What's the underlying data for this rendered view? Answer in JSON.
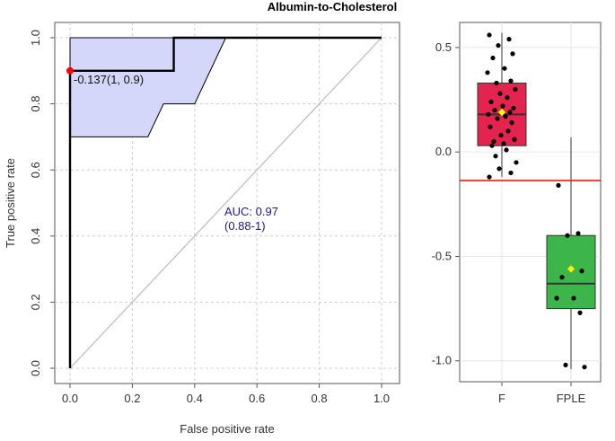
{
  "title": "Albumin-to-Cholesterol",
  "chart_data": [
    {
      "type": "line",
      "subtype": "roc",
      "xlabel": "False positive rate",
      "ylabel": "True positive rate",
      "xlim": [
        0,
        1
      ],
      "ylim": [
        0,
        1
      ],
      "xticks": [
        "0.0",
        "0.2",
        "0.4",
        "0.6",
        "0.8",
        "1.0"
      ],
      "yticks": [
        "0.0",
        "0.2",
        "0.4",
        "0.6",
        "0.8",
        "1.0"
      ],
      "grid": true,
      "roc_curve": [
        [
          0,
          0
        ],
        [
          0,
          0.9
        ],
        [
          0.333,
          0.9
        ],
        [
          0.333,
          1.0
        ],
        [
          1.0,
          1.0
        ]
      ],
      "ci_upper": [
        [
          0,
          0.7
        ],
        [
          0,
          1.0
        ],
        [
          0.5,
          1.0
        ]
      ],
      "ci_lower": [
        [
          0,
          0.7
        ],
        [
          0.25,
          0.7
        ],
        [
          0.3,
          0.8
        ],
        [
          0.4,
          0.8
        ],
        [
          0.5,
          1.0
        ]
      ],
      "diagonal": [
        [
          0,
          0
        ],
        [
          1,
          1
        ]
      ],
      "optimal_point": {
        "x": 0,
        "y": 0.9,
        "label": "-0.137(1, 0.9)"
      },
      "auc_label": "AUC: 0.97",
      "auc_ci_label": "(0.88-1)",
      "colors": {
        "curve": "#000000",
        "ci_fill": "#d4d6fa",
        "ci_line": "#000000",
        "diagonal": "#bbbbbb",
        "point": "#ff0000",
        "auc_text": "#1a1a8c"
      }
    },
    {
      "type": "box",
      "categories": [
        "F",
        "FPLE"
      ],
      "ylim": [
        -1.1,
        0.62
      ],
      "yticks": [
        0.5,
        0.0,
        -0.5,
        -1.0
      ],
      "ytick_labels": [
        "0.5",
        "0.0",
        "-0.5",
        "-1.0"
      ],
      "grid": true,
      "threshold": -0.137,
      "boxes": [
        {
          "name": "F",
          "min": -0.12,
          "q1": 0.03,
          "median": 0.18,
          "q3": 0.33,
          "max": 0.57,
          "mean": 0.19,
          "color": "#e4234e",
          "points": [
            0.56,
            0.54,
            0.51,
            0.47,
            0.45,
            0.4,
            0.38,
            0.34,
            0.33,
            0.3,
            0.28,
            0.26,
            0.24,
            0.22,
            0.21,
            0.2,
            0.19,
            0.18,
            0.17,
            0.16,
            0.14,
            0.12,
            0.1,
            0.08,
            0.06,
            0.05,
            0.04,
            0.03,
            0.01,
            -0.02,
            -0.05,
            -0.08,
            -0.1,
            -0.12
          ]
        },
        {
          "name": "FPLE",
          "min": -1.04,
          "q1": -0.75,
          "median": -0.63,
          "q3": -0.4,
          "max": 0.07,
          "mean": -0.56,
          "color": "#3cb54a",
          "points": [
            -0.16,
            -0.39,
            -0.4,
            -0.57,
            -0.6,
            -0.7,
            -0.7,
            -0.77,
            -1.02,
            -1.03
          ]
        }
      ],
      "colors": {
        "threshold": "#ff0000",
        "mean_marker": "#ffff00",
        "point": "#000000"
      }
    }
  ]
}
